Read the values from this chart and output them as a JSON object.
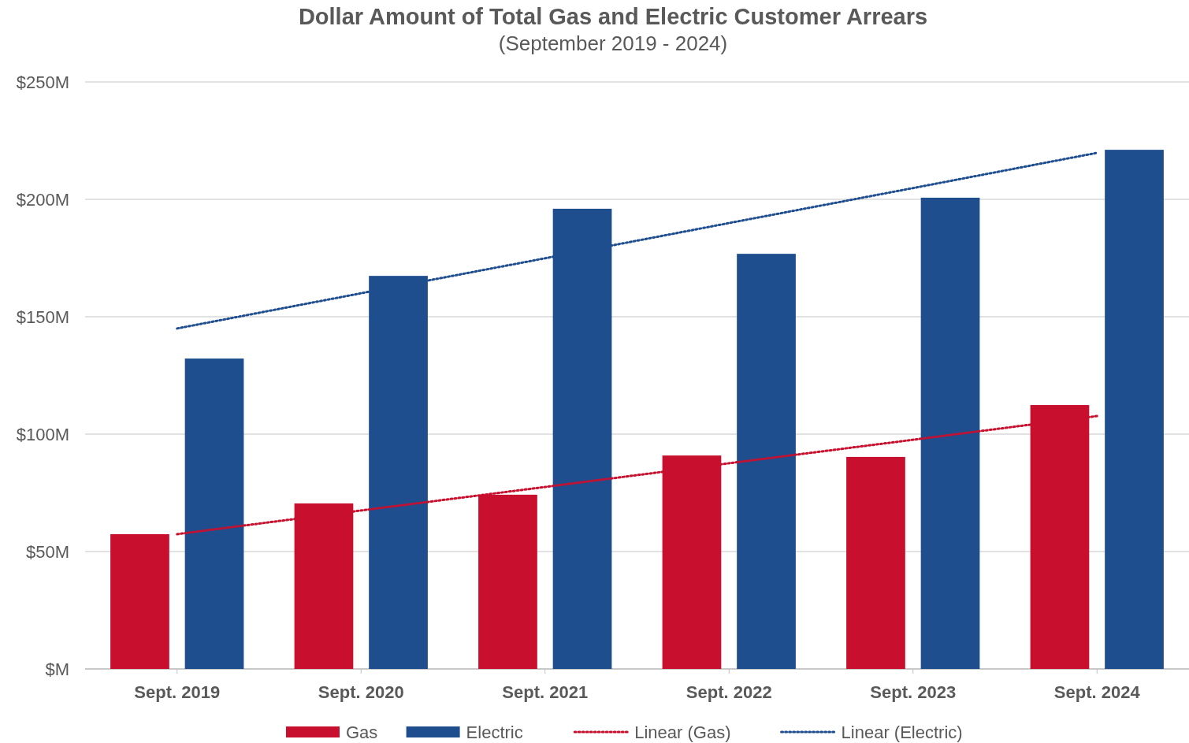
{
  "chart_data": {
    "type": "bar",
    "title": "Dollar Amount of Total Gas and Electric Customer Arrears",
    "subtitle": "(September 2019 - 2024)",
    "categories": [
      "Sept. 2019",
      "Sept. 2020",
      "Sept. 2021",
      "Sept. 2022",
      "Sept. 2023",
      "Sept. 2024"
    ],
    "series": [
      {
        "name": "Gas",
        "color": "#c8102e",
        "values": [
          57.4,
          70.5,
          74.2,
          90.9,
          90.3,
          112.4
        ]
      },
      {
        "name": "Electric",
        "color": "#1f4e8f",
        "values": [
          132.2,
          167.4,
          196.0,
          176.8,
          200.7,
          221.1
        ]
      },
      {
        "name": "Linear (Gas)",
        "type": "line",
        "line_style": "dotted",
        "color": "#c8102e",
        "values": [
          57.4,
          67.5,
          77.5,
          87.6,
          97.6,
          107.7
        ]
      },
      {
        "name": "Linear (Electric)",
        "type": "line",
        "line_style": "dotted",
        "color": "#1f4e8f",
        "values": [
          145.0,
          160.0,
          174.9,
          189.9,
          204.8,
          219.8
        ]
      }
    ],
    "ylim": [
      0,
      250
    ],
    "yticks": [
      {
        "value": 0,
        "label": "$M"
      },
      {
        "value": 50,
        "label": "$50M"
      },
      {
        "value": 100,
        "label": "$100M"
      },
      {
        "value": 150,
        "label": "$150M"
      },
      {
        "value": 200,
        "label": "$200M"
      },
      {
        "value": 250,
        "label": "$250M"
      }
    ],
    "grid": "y",
    "legend": "bottom"
  }
}
